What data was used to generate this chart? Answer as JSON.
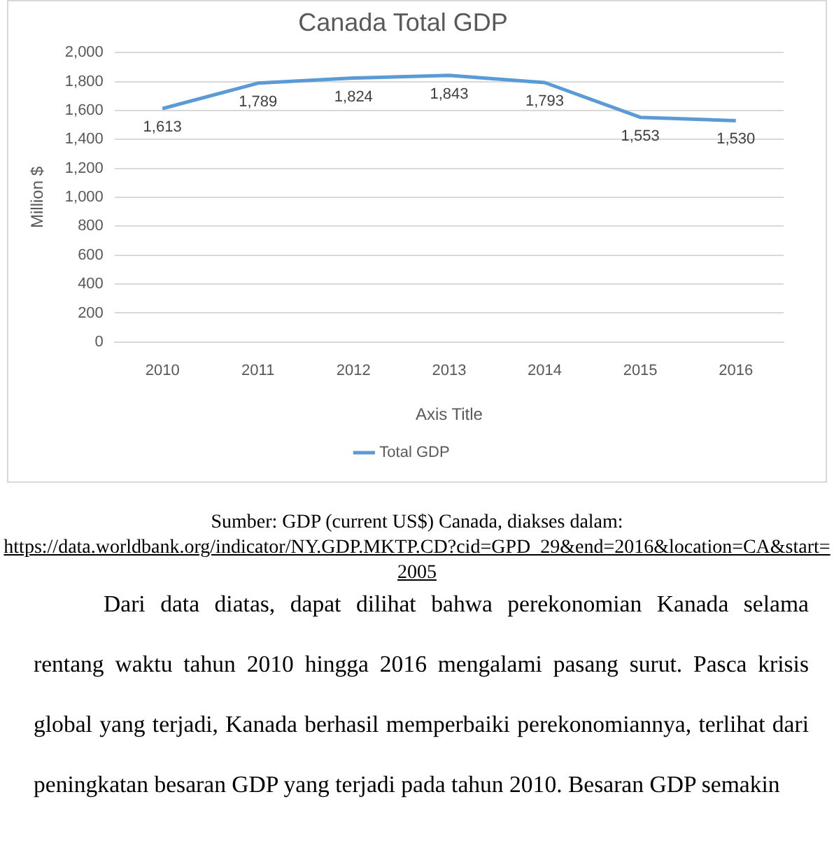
{
  "chart_data": {
    "type": "line",
    "title": "Canada Total GDP",
    "xlabel": "Axis Title",
    "ylabel": "Million $",
    "categories": [
      "2010",
      "2011",
      "2012",
      "2013",
      "2014",
      "2015",
      "2016"
    ],
    "series": [
      {
        "name": "Total GDP",
        "color": "#5b9bd5",
        "values": [
          1613,
          1789,
          1824,
          1843,
          1793,
          1553,
          1530
        ],
        "value_labels": [
          "1,613",
          "1,789",
          "1,824",
          "1,843",
          "1,793",
          "1,553",
          "1,530"
        ]
      }
    ],
    "ylim": [
      0,
      2000
    ],
    "yticks": [
      0,
      200,
      400,
      600,
      800,
      {
        "value": 1000,
        "label": "1,000"
      },
      {
        "value": 1200,
        "label": "1,200"
      },
      {
        "value": 1400,
        "label": "1,400"
      },
      {
        "value": 1600,
        "label": "1,600"
      },
      {
        "value": 1800,
        "label": "1,800"
      },
      {
        "value": 2000,
        "label": "2,000"
      }
    ],
    "grid": "y",
    "legend": "bottom",
    "marker": "none",
    "line_style": "solid",
    "annotations": [
      "Sumber: GDP (current US$) Canada, diakses dalam:",
      "https://data.worldbank.org/indicator/NY.GDP.MKTP.CD?cid=GPD_29&end=2016&location=CA&start=2005",
      "Dari data diatas, dapat dilihat bahwa perekonomian Kanada selama rentang waktu tahun 2010 hingga 2016 mengalami pasang surut. Pasca krisis global yang terjadi, Kanada berhasil memperbaiki perekonomiannya, terlihat dari peningkatan besaran GDP yang terjadi pada tahun 2010. Besaran GDP semakin"
    ]
  }
}
